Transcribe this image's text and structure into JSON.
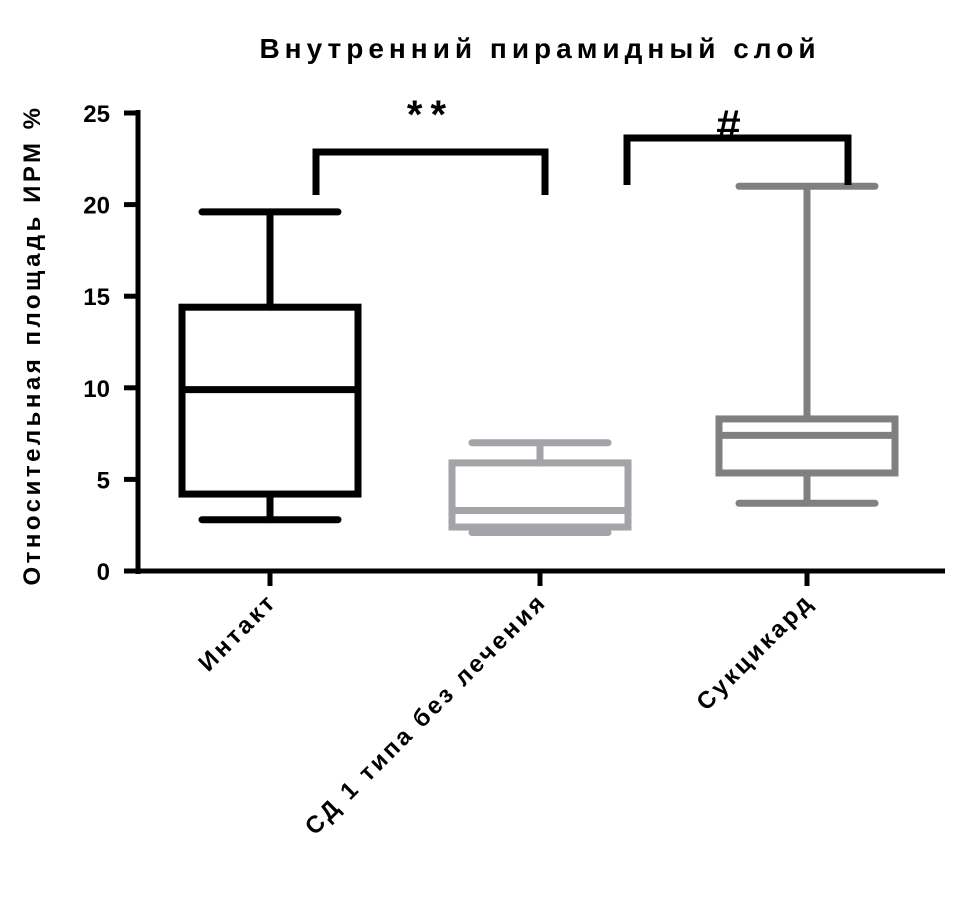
{
  "chart_data": {
    "type": "box",
    "title": "Внутренний пирамидный слой",
    "xlabel": "",
    "ylabel": "Относительная площадь ИРМ %",
    "ylim": [
      0,
      25
    ],
    "yticks": [
      0,
      5,
      10,
      15,
      20,
      25
    ],
    "grid": false,
    "categories": [
      "Интакт",
      "СД 1 типа без лечения",
      "Сукцикард"
    ],
    "series": [
      {
        "name": "Интакт",
        "min": 2.8,
        "q1": 4.2,
        "median": 9.9,
        "q3": 14.4,
        "max": 19.6,
        "color": "#000000"
      },
      {
        "name": "СД 1 типа без лечения",
        "min": 2.1,
        "q1": 2.4,
        "median": 3.3,
        "q3": 5.9,
        "max": 7.0,
        "color": "#a3a3a8"
      },
      {
        "name": "Сукцикард",
        "min": 3.7,
        "q1": 5.35,
        "median": 7.4,
        "q3": 8.3,
        "max": 21.0,
        "color": "#808080"
      }
    ],
    "annotations": [
      {
        "text": "**",
        "from": "Интакт",
        "to": "СД 1 типа без лечения"
      },
      {
        "text": "#",
        "from": "СД 1 типа без лечения",
        "to": "Сукцикард"
      }
    ]
  }
}
